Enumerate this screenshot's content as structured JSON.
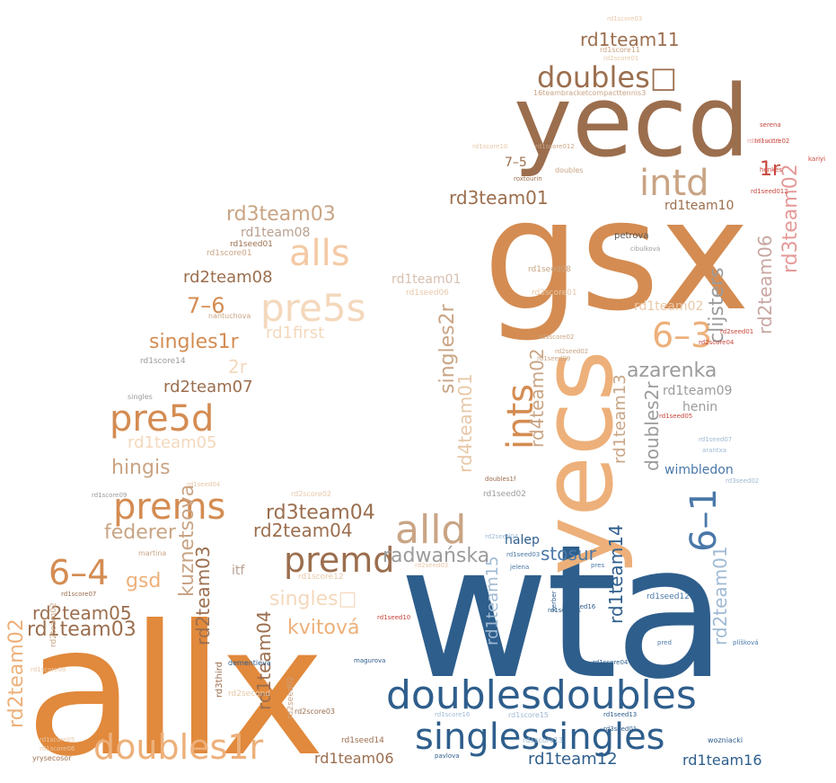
{
  "palette": {
    "dark_blue": "#2e5e8c",
    "mid_blue": "#4a78a8",
    "light_blue": "#9fbad4",
    "dark_brown": "#9b6e4e",
    "orange": "#e1893c",
    "light_orange": "#edb07a",
    "peach": "#f4c9a4",
    "tan": "#c9a484",
    "grey": "#9b9b9b",
    "red": "#c8463c",
    "pink": "#e49a98"
  },
  "words": {
    "allx": "allx",
    "wta": "wta",
    "gsx": "gsx",
    "yecd": "yecd",
    "yecs": "yecs",
    "doublesdoubles": "doublesdoubles",
    "singlessingles": "singlessingles",
    "doubles1r": "doubles1r",
    "doubles_box": "doubles□",
    "intd": "intd",
    "ints": "ints",
    "alls": "alls",
    "alld": "alld",
    "pre5s": "pre5s",
    "pre5d": "pre5d",
    "prems": "prems",
    "premd": "premd",
    "score_6_3": "6–3",
    "score_6_1": "6–1",
    "score_6_4": "6–4",
    "score_7_6": "7–6",
    "score_7_5": "7–5",
    "rd1team11": "rd1team11",
    "rd3team01": "rd3team01",
    "rd3team03": "rd3team03",
    "rd3team04": "rd3team04",
    "rd2team08": "rd2team08",
    "rd2team07": "rd2team07",
    "rd2team05": "rd2team05",
    "rd2team04": "rd2team04",
    "rd2team02": "rd2team02",
    "rd2team03": "rd2team03",
    "rd2team06": "rd2team06",
    "rd2team01": "rd2team01",
    "rd1team08": "rd1team08",
    "rd1team01": "rd1team01",
    "rd1team03": "rd1team03",
    "rd1team05": "rd1team05",
    "rd1team06": "rd1team06",
    "rd1team09": "rd1team09",
    "rd1team10": "rd1team10",
    "rd1team02": "rd1team02",
    "rd1team12": "rd1team12",
    "rd1team16": "rd1team16",
    "rd1team13": "rd1team13",
    "rd1team14": "rd1team14",
    "rd1team15": "rd1team15",
    "rd1team04": "rd1team04",
    "rd3team02": "rd3team02",
    "rd4team01": "rd4team01",
    "rd4team02": "rd4team02",
    "singles1r": "singles1r",
    "singles2r": "singles2r",
    "singles_box": "singles□",
    "doubles2r": "doubles2r",
    "rd1first": "rd1first",
    "r1r": "1r",
    "r2r": "2r",
    "azarenka": "azarenka",
    "clijsters": "clijsters",
    "henin": "henin",
    "wimbledon": "wimbledon",
    "hingis": "hingis",
    "federer": "federer",
    "gsd": "gsd",
    "kuznetsova": "kuznetsova",
    "radwanska": "radwańska",
    "stosur": "stosur",
    "kvitova": "kvitová",
    "halep": "halep",
    "itf": "itf",
    "petrova": "petrova",
    "cibulkova": "cibulková",
    "rd1seed01": "rd1seed01",
    "rd1score01": "rd1score01",
    "rd1seed06": "rd1seed06",
    "rd2seed02": "rd2seed02",
    "rd1score14": "rd1score14",
    "rd1score12": "rd1score12",
    "rd2score02": "rd2score02",
    "rd1score15": "rd1score15",
    "rd1seed14": "rd1seed14",
    "rd2second": "rd2second",
    "rd3third": "rd3third",
    "rd1seed12": "rd1seed12",
    "rd2seed02b": "rd2seed02",
    "rd1seed08": "rd1seed08",
    "rd3score01": "rd3score01",
    "teambracket": "16teambracketcompacttennis3",
    "rd1score11": "rd1score11",
    "rd1score03": "rd1score03",
    "rd2score01": "rd2score01",
    "rd1seed05": "rd1seed05",
    "rd1score02": "rd1score02",
    "rd1score05": "rd1score05",
    "rd1seed03": "rd1seed03",
    "rd2score03": "rd2score03",
    "rd1seed11": "rd1seed11",
    "rd1score04": "rd1score04",
    "rd1score16": "rd1score16",
    "rd1score13": "rd1score13",
    "rd1seed02": "rd1seed02",
    "rd2score04": "rd2score04",
    "rd1score06": "rd1score06",
    "rd1score07": "rd1score07",
    "rd1score08": "rd1score08",
    "rd1score09": "rd1score09",
    "rd1score10": "rd1score10",
    "rd1seed04": "rd1seed04",
    "rd1seed07": "rd1seed07",
    "rd1seed09": "rd1seed09",
    "rd1seed10": "rd1seed10",
    "rd1seed13": "rd1seed13",
    "rd1seed15": "rd1seed15",
    "rd1seed16": "rd1seed16",
    "rd2seed01": "rd2seed01",
    "rd2seed03": "rd2seed03",
    "rd2seed04": "rd2seed04",
    "rd3score02": "rd3score02",
    "rd3seed01": "rd3seed01",
    "rd3seed02": "rd3seed02",
    "roxtour": "roxtourin",
    "doubles_small": "doubles",
    "nantuchova": "nantuchova",
    "singles_sm": "singles",
    "martina": "martina",
    "jelena": "jelena",
    "pres": "pres",
    "pred": "pred",
    "wozniacki": "wozniacki",
    "dementieva": "dementieva",
    "magurova": "magurova",
    "plishova": "plíšková",
    "kerber": "kerber",
    "serena": "serena",
    "henkes": "henkes",
    "kariyi": "kariyi",
    "rd1score012": "rd1score012",
    "doubles1f": "doubles1f",
    "rd1seed012": "rd1seed012",
    "pavlova": "pavlova",
    "yrysecosor": "yrysecosor",
    "arantxa": "arantxa",
    "rd2team02b": "rd2team02"
  }
}
